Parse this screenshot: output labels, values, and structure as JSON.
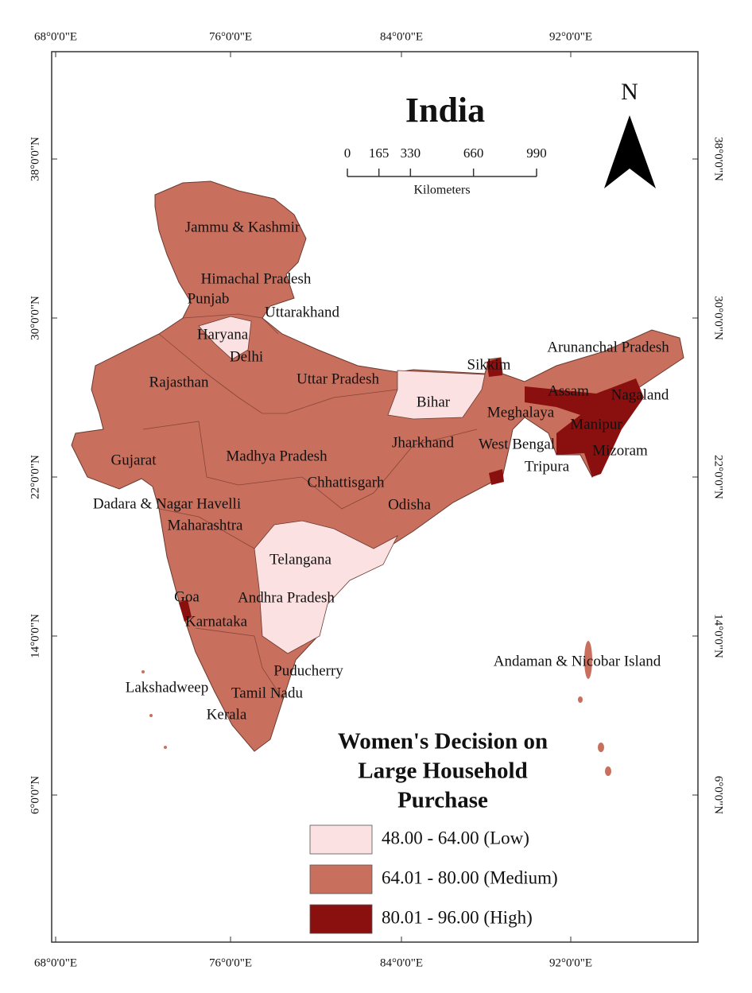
{
  "map": {
    "title": "India",
    "north_label": "N",
    "scale_bar": {
      "ticks": [
        0,
        165,
        330,
        660,
        990
      ],
      "unit": "Kilometers"
    },
    "longitude_labels": [
      "68°0'0\"E",
      "76°0'0\"E",
      "84°0'0\"E",
      "92°0'0\"E"
    ],
    "latitude_labels": [
      "38°0'0\"N",
      "30°0'0\"N",
      "22°0'0\"N",
      "14°0'0\"N",
      "6°0'0\"N"
    ],
    "regions": [
      {
        "label": "Jammu & Kashmir"
      },
      {
        "label": "Himachal Pradesh"
      },
      {
        "label": "Punjab"
      },
      {
        "label": "Uttarakhand"
      },
      {
        "label": "Haryana"
      },
      {
        "label": "Delhi"
      },
      {
        "label": "Rajasthan"
      },
      {
        "label": "Uttar Pradesh"
      },
      {
        "label": "Sikkim"
      },
      {
        "label": "Arunanchal Pradesh"
      },
      {
        "label": "Assam"
      },
      {
        "label": "Nagaland"
      },
      {
        "label": "Bihar"
      },
      {
        "label": "Meghalaya"
      },
      {
        "label": "Manipur"
      },
      {
        "label": "Jharkhand"
      },
      {
        "label": "West Bengal"
      },
      {
        "label": "Mizoram"
      },
      {
        "label": "Tripura"
      },
      {
        "label": "Gujarat"
      },
      {
        "label": "Madhya Pradesh"
      },
      {
        "label": "Chhattisgarh"
      },
      {
        "label": "Odisha"
      },
      {
        "label": "Dadara & Nagar Havelli"
      },
      {
        "label": "Maharashtra"
      },
      {
        "label": "Telangana"
      },
      {
        "label": "Goa"
      },
      {
        "label": "Andhra Pradesh"
      },
      {
        "label": "Karnataka"
      },
      {
        "label": "Andaman & Nicobar Island"
      },
      {
        "label": "Puducherry"
      },
      {
        "label": "Lakshadweep"
      },
      {
        "label": "Tamil Nadu"
      },
      {
        "label": "Kerala"
      }
    ],
    "legend": {
      "title_lines": [
        "Women's Decision on",
        "Large Household",
        "Purchase"
      ],
      "items": [
        {
          "label": "48.00 - 64.00 (Low)",
          "color": "#fbe1e1"
        },
        {
          "label": "64.01 - 80.00 (Medium)",
          "color": "#c96f5d"
        },
        {
          "label": "80.01 - 96.00 (High)",
          "color": "#8a1010"
        }
      ]
    }
  }
}
